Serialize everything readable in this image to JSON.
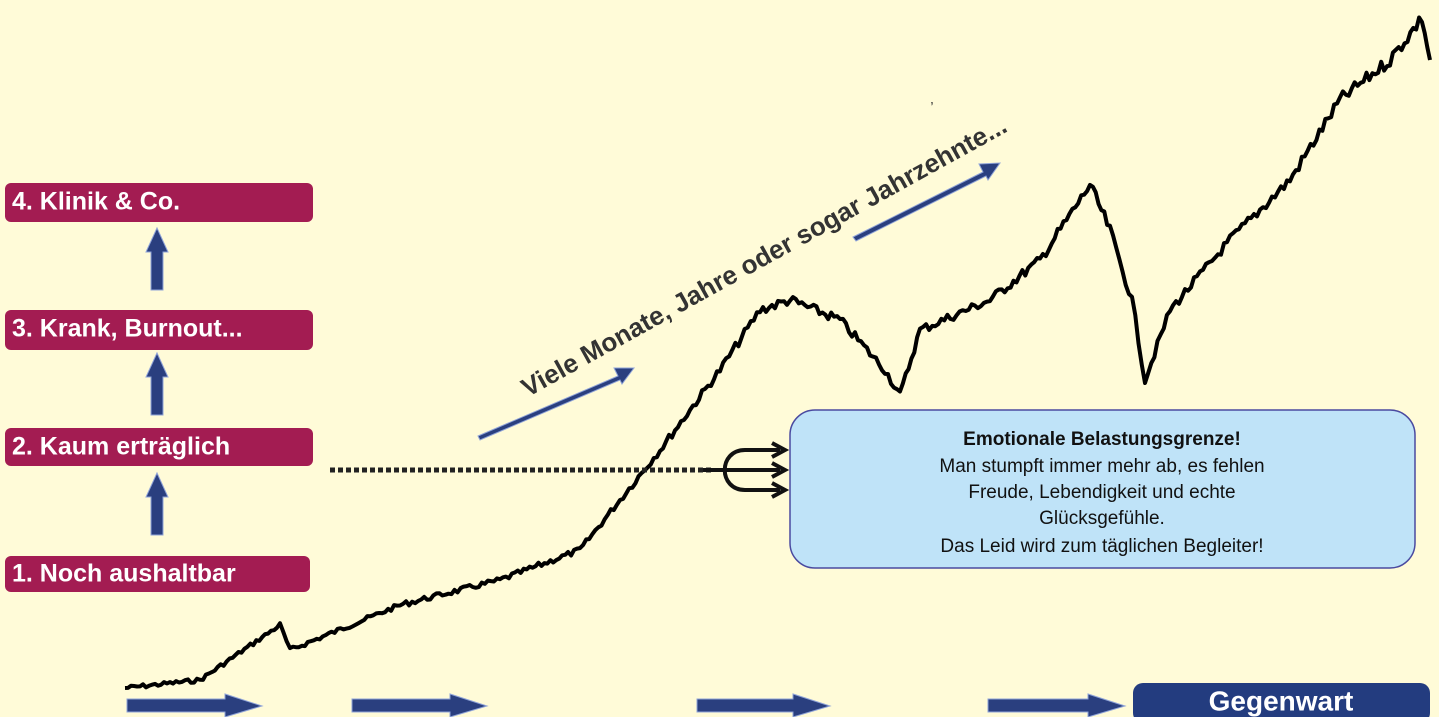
{
  "stages": [
    {
      "label": "4. Klinik & Co."
    },
    {
      "label": "3. Krank, Burnout..."
    },
    {
      "label": "2. Kaum erträglich"
    },
    {
      "label": "1. Noch aushaltbar"
    }
  ],
  "timeline_text": "Viele Monate, Jahre oder sogar Jahrzehnte...",
  "stray_mark": ",",
  "callout": {
    "title": "Emotionale Belastungsgrenze!",
    "lines": [
      "Man stumpft immer mehr ab, es fehlen",
      "Freude, Lebendigkeit und echte",
      "Glücksgefühle.",
      "Das Leid wird zum täglichen Begleiter!"
    ]
  },
  "present": "Gegenwart"
}
